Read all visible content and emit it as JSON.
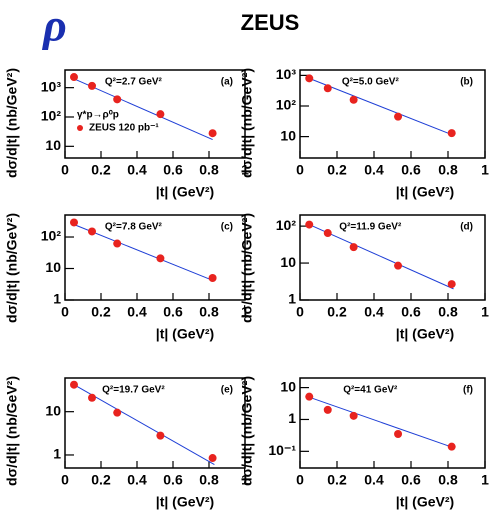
{
  "header": {
    "title": "ZEUS",
    "symbol": "ρ"
  },
  "chart_data": [
    {
      "type": "scatter",
      "q2": "Q²=2.7 GeV²",
      "panel": "(a)",
      "process": "γ*p→ρ⁰p",
      "legend_label": "ZEUS 120 pb⁻¹",
      "xlabel": "|t| (GeV²)",
      "ylabel": "dσ/d|t| (nb/GeV²)",
      "log_y": true,
      "x": [
        0.05,
        0.15,
        0.29,
        0.53,
        0.82
      ],
      "points": {
        "color": "#e8231f",
        "values": [
          2300,
          1150,
          400,
          125,
          28
        ]
      },
      "fit": {
        "color": "#1f3fd6",
        "x": [
          0.05,
          0.82
        ],
        "values": [
          2000,
          17
        ]
      },
      "xlim": [
        0,
        1
      ],
      "xticks": [
        0,
        0.2,
        0.4,
        0.6,
        0.8,
        1
      ],
      "ylim": [
        4,
        4000
      ],
      "yticks": [
        {
          "value": 10,
          "label": "10"
        },
        {
          "value": 100,
          "label": "10²"
        },
        {
          "value": 1000,
          "label": "10³"
        }
      ]
    },
    {
      "type": "scatter",
      "q2": "Q²=5.0 GeV²",
      "panel": "(b)",
      "xlabel": "|t| (GeV²)",
      "ylabel": "dσ/d|t| (nb/GeV²)",
      "log_y": true,
      "x": [
        0.05,
        0.15,
        0.29,
        0.53,
        0.82
      ],
      "points": {
        "color": "#e8231f",
        "values": [
          800,
          380,
          160,
          45,
          13
        ]
      },
      "fit": {
        "color": "#1f3fd6",
        "x": [
          0.05,
          0.83
        ],
        "values": [
          800,
          11
        ]
      },
      "xlim": [
        0,
        1
      ],
      "xticks": [
        0,
        0.2,
        0.4,
        0.6,
        0.8,
        1
      ],
      "ylim": [
        2,
        1500
      ],
      "yticks": [
        {
          "value": 10,
          "label": "10"
        },
        {
          "value": 100,
          "label": "10²"
        },
        {
          "value": 1000,
          "label": "10³"
        }
      ]
    },
    {
      "type": "scatter",
      "q2": "Q²=7.8 GeV²",
      "panel": "(c)",
      "xlabel": "|t| (GeV²)",
      "ylabel": "dσ/d|t| (nb/GeV²)",
      "log_y": true,
      "x": [
        0.05,
        0.15,
        0.29,
        0.53,
        0.82
      ],
      "points": {
        "color": "#e8231f",
        "values": [
          290,
          150,
          62,
          21,
          5
        ]
      },
      "fit": {
        "color": "#1f3fd6",
        "x": [
          0.05,
          0.83
        ],
        "values": [
          250,
          4
        ]
      },
      "xlim": [
        0,
        1
      ],
      "xticks": [
        0,
        0.2,
        0.4,
        0.6,
        0.8,
        1
      ],
      "ylim": [
        1,
        500
      ],
      "yticks": [
        1,
        10,
        {
          "value": 100,
          "label": "10²"
        }
      ]
    },
    {
      "type": "scatter",
      "q2": "Q²=11.9 GeV²",
      "panel": "(d)",
      "xlabel": "|t| (GeV²)",
      "ylabel": "dσ/d|t| (nb/GeV²)",
      "log_y": true,
      "x": [
        0.05,
        0.15,
        0.29,
        0.53,
        0.82
      ],
      "points": {
        "color": "#e8231f",
        "values": [
          110,
          65,
          27,
          8.5,
          2.7
        ]
      },
      "fit": {
        "color": "#1f3fd6",
        "x": [
          0.05,
          0.83
        ],
        "values": [
          110,
          2
        ]
      },
      "xlim": [
        0,
        1
      ],
      "xticks": [
        0,
        0.2,
        0.4,
        0.6,
        0.8,
        1
      ],
      "ylim": [
        1,
        200
      ],
      "yticks": [
        1,
        10,
        {
          "value": 100,
          "label": "10²"
        }
      ]
    },
    {
      "type": "scatter",
      "q2": "Q²=19.7 GeV²",
      "panel": "(e)",
      "xlabel": "|t| (GeV²)",
      "ylabel": "dσ/d|t| (nb/GeV²)",
      "log_y": true,
      "x": [
        0.05,
        0.15,
        0.29,
        0.53,
        0.82
      ],
      "points": {
        "color": "#e8231f",
        "values": [
          42,
          21,
          9.5,
          2.8,
          0.85
        ]
      },
      "fit": {
        "color": "#1f3fd6",
        "x": [
          0.05,
          0.83
        ],
        "values": [
          42,
          0.6
        ]
      },
      "xlim": [
        0,
        1
      ],
      "xticks": [
        0,
        0.2,
        0.4,
        0.6,
        0.8,
        1
      ],
      "ylim": [
        0.5,
        60
      ],
      "yticks": [
        1,
        10
      ]
    },
    {
      "type": "scatter",
      "q2": "Q²=41 GeV²",
      "panel": "(f)",
      "xlabel": "|t| (GeV²)",
      "ylabel": "dσ/d|t| (nb/GeV²)",
      "log_y": true,
      "x": [
        0.05,
        0.15,
        0.29,
        0.53,
        0.82
      ],
      "points": {
        "color": "#e8231f",
        "values": [
          5.2,
          2.0,
          1.3,
          0.35,
          0.14
        ]
      },
      "fit": {
        "color": "#1f3fd6",
        "x": [
          0.05,
          0.83
        ],
        "values": [
          5,
          0.13
        ]
      },
      "xlim": [
        0,
        1
      ],
      "xticks": [
        0,
        0.2,
        0.4,
        0.6,
        0.8,
        1
      ],
      "ylim": [
        0.03,
        20
      ],
      "yticks": [
        {
          "value": 0.1,
          "label": "10⁻¹"
        },
        1,
        10
      ]
    }
  ]
}
